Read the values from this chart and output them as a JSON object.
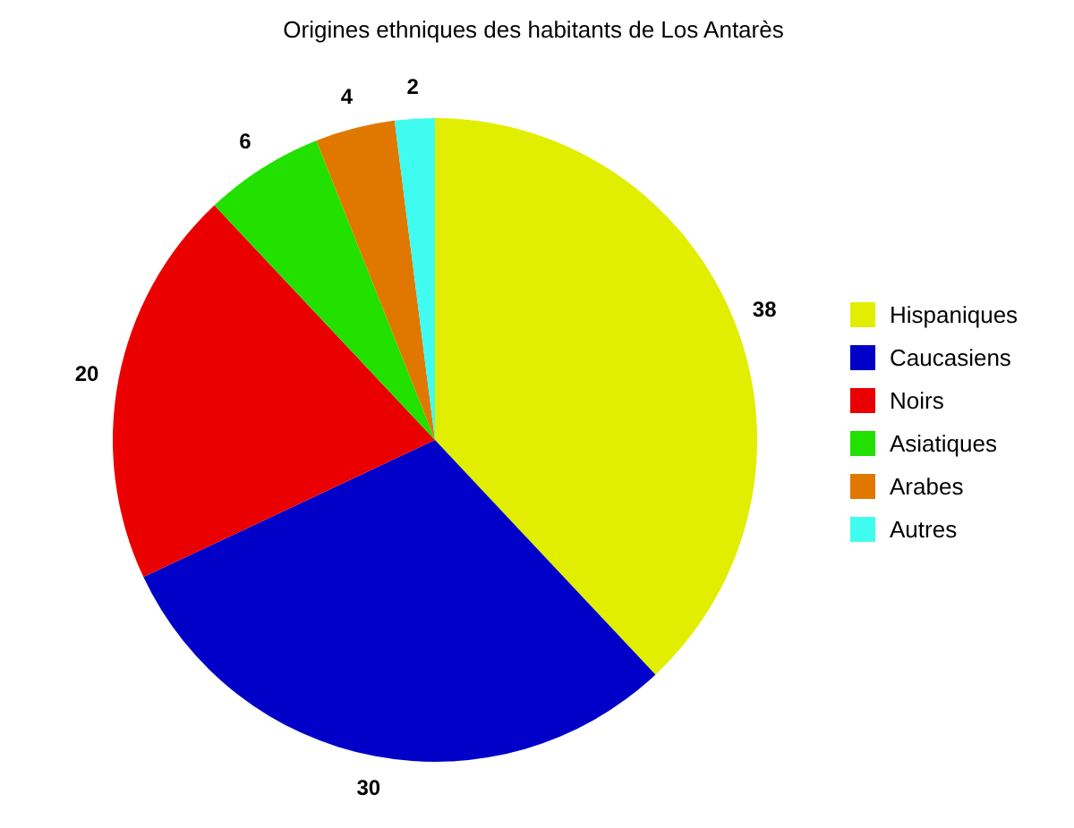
{
  "chart_data": {
    "type": "pie",
    "title": "Origines ethniques des habitants de Los Antarès",
    "categories": [
      "Hispaniques",
      "Caucasiens",
      "Noirs",
      "Asiatiques",
      "Arabes",
      "Autres"
    ],
    "values": [
      38,
      30,
      20,
      6,
      4,
      2
    ],
    "colors": [
      "#e2ee00",
      "#0000c8",
      "#ea0000",
      "#22e000",
      "#e07800",
      "#40fcf0"
    ],
    "data_labels": true,
    "legend": "right"
  }
}
